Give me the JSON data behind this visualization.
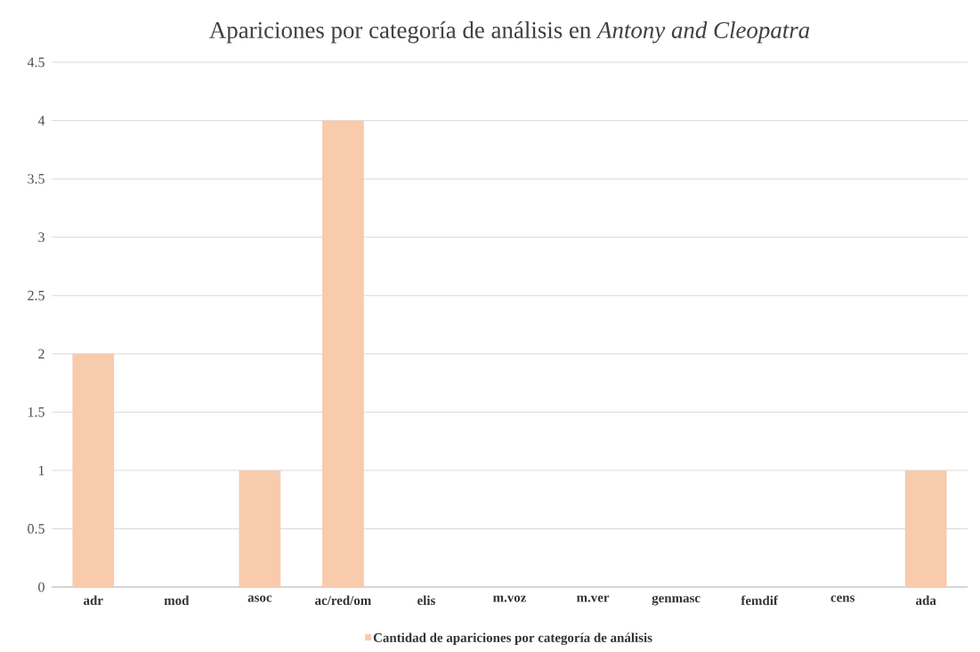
{
  "chart_data": {
    "type": "bar",
    "title": "Apariciones por categoría de análisis en *Antony and Cleopatra*",
    "categories": [
      "adr",
      "mod",
      "asoc",
      "ac/red/om",
      "elis",
      "m.voz",
      "m.ver",
      "genmasc",
      "femdif",
      "cens",
      "ada"
    ],
    "series": [
      {
        "name": "Cantidad de apariciones por categoría de análisis",
        "color": "#f8cbad",
        "values": [
          2,
          0,
          1,
          4,
          0,
          0,
          0,
          0,
          0,
          0,
          1
        ]
      }
    ],
    "ylim": [
      0,
      4.5
    ],
    "yticks": [
      0,
      0.5,
      1,
      1.5,
      2,
      2.5,
      3,
      3.5,
      4,
      4.5
    ],
    "grid": "y",
    "legend": "bottom"
  }
}
